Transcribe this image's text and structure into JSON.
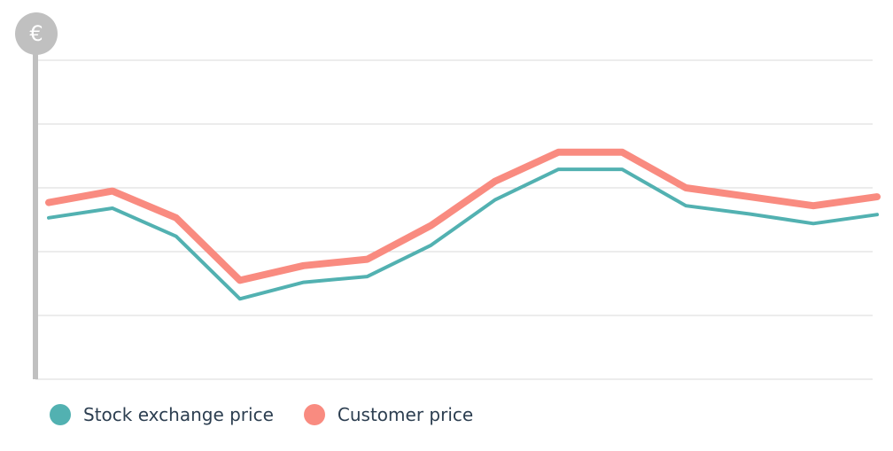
{
  "chart_data": {
    "type": "line",
    "unit_symbol": "€",
    "x": [
      1,
      2,
      3,
      4,
      5,
      6,
      7,
      8,
      9,
      10,
      11,
      12,
      13,
      14
    ],
    "ylim": [
      0,
      5
    ],
    "grid": true,
    "legend_position": "bottom-left",
    "series": [
      {
        "name": "Stock exchange price",
        "color": "#52b1b1",
        "values": [
          2.53,
          2.68,
          2.24,
          1.26,
          1.52,
          1.61,
          2.1,
          2.81,
          3.29,
          3.29,
          2.72,
          2.59,
          2.44,
          2.58
        ]
      },
      {
        "name": "Customer price",
        "color": "#f98b80",
        "values": [
          2.77,
          2.95,
          2.53,
          1.55,
          1.78,
          1.88,
          2.41,
          3.1,
          3.56,
          3.56,
          3.0,
          2.86,
          2.72,
          2.86
        ]
      }
    ]
  },
  "colors": {
    "axis": "#c0c0c0",
    "grid": "#d9d9d9",
    "badge_text": "#ffffff"
  }
}
